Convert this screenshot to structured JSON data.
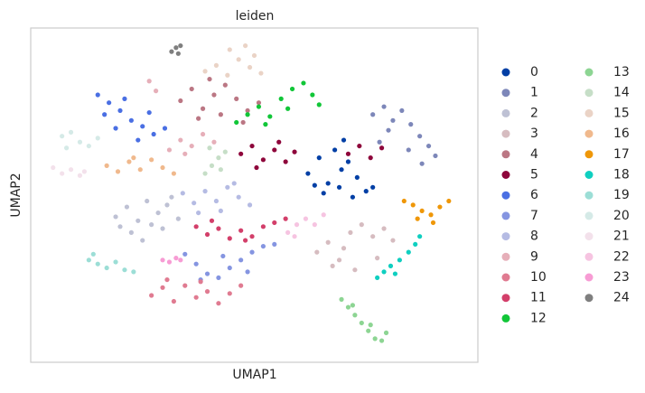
{
  "chart_data": {
    "type": "scatter",
    "title": "leiden",
    "x_label": "UMAP1",
    "y_label": "UMAP2",
    "xlim": [
      0,
      20
    ],
    "ylim": [
      0,
      17
    ],
    "grid": false,
    "legend": "right",
    "series": [
      {
        "name": "0",
        "color": "#023fa5",
        "x": [
          12.4,
          12.9,
          13.3,
          13.6,
          13.9,
          14.2,
          14.6,
          15.0,
          13.1,
          13.8,
          14.4,
          15.3,
          12.7,
          14.0
        ],
        "y": [
          9.6,
          10.4,
          9.1,
          10.8,
          9.8,
          10.2,
          9.4,
          8.7,
          8.6,
          8.9,
          8.4,
          8.9,
          9.0,
          11.3
        ]
      },
      {
        "name": "1",
        "color": "#7d87b9",
        "x": [
          15.3,
          15.8,
          16.2,
          16.6,
          17.0,
          17.4,
          17.8,
          18.1,
          16.0,
          16.9,
          17.5,
          15.6
        ],
        "y": [
          12.6,
          13.0,
          12.3,
          12.8,
          12.1,
          11.5,
          11.0,
          10.5,
          11.8,
          10.8,
          10.1,
          11.2
        ]
      },
      {
        "name": "2",
        "color": "#bec1d4",
        "x": [
          3.8,
          4.3,
          4.8,
          5.2,
          5.7,
          6.1,
          6.6,
          4.5,
          5.0,
          5.9,
          4.0,
          5.4,
          6.3
        ],
        "y": [
          7.4,
          7.9,
          7.2,
          8.2,
          7.6,
          8.0,
          7.3,
          6.6,
          6.2,
          6.8,
          6.9,
          7.0,
          8.4
        ]
      },
      {
        "name": "3",
        "color": "#d6bcc0",
        "x": [
          12.8,
          13.3,
          13.8,
          14.3,
          14.8,
          15.3,
          15.8,
          16.2,
          13.5,
          14.5,
          15.5,
          14.0
        ],
        "y": [
          5.6,
          6.1,
          5.2,
          6.6,
          7.0,
          6.4,
          6.8,
          6.2,
          4.9,
          4.7,
          5.3,
          5.8
        ]
      },
      {
        "name": "4",
        "color": "#bb7784",
        "x": [
          6.7,
          7.2,
          7.7,
          8.2,
          8.7,
          9.2,
          9.7,
          10.2,
          7.5,
          8.5,
          9.5,
          8.0
        ],
        "y": [
          13.3,
          13.9,
          12.9,
          13.6,
          14.1,
          13.4,
          12.8,
          13.2,
          12.4,
          12.6,
          12.2,
          14.4
        ]
      },
      {
        "name": "5",
        "color": "#8e063b",
        "x": [
          9.4,
          9.9,
          10.4,
          10.9,
          11.4,
          11.8,
          14.2,
          14.7,
          15.2,
          15.7,
          10.1,
          11.1
        ],
        "y": [
          10.6,
          11.0,
          10.3,
          10.8,
          10.2,
          10.7,
          10.6,
          11.0,
          10.4,
          10.9,
          9.9,
          11.2
        ]
      },
      {
        "name": "6",
        "color": "#4a6fe3",
        "x": [
          3.0,
          3.5,
          4.0,
          4.5,
          5.0,
          5.5,
          6.0,
          3.3,
          4.2,
          4.8,
          5.3,
          3.8
        ],
        "y": [
          13.6,
          13.2,
          12.8,
          12.3,
          12.0,
          11.6,
          11.9,
          12.6,
          13.4,
          11.3,
          12.7,
          11.9
        ]
      },
      {
        "name": "7",
        "color": "#8595e1",
        "x": [
          6.9,
          7.4,
          7.9,
          8.4,
          8.9,
          9.4,
          9.9,
          10.4,
          10.9,
          7.6,
          8.6,
          9.7
        ],
        "y": [
          5.5,
          5.0,
          4.5,
          4.3,
          4.8,
          5.2,
          5.6,
          5.9,
          6.0,
          4.2,
          5.4,
          4.6
        ]
      },
      {
        "name": "8",
        "color": "#b5bbe3",
        "x": [
          6.8,
          7.3,
          7.8,
          8.3,
          8.8,
          9.3,
          9.8,
          7.5,
          8.5,
          9.1
        ],
        "y": [
          8.6,
          8.1,
          8.7,
          8.2,
          8.9,
          8.4,
          8.0,
          7.6,
          7.7,
          9.1
        ]
      },
      {
        "name": "9",
        "color": "#e6afb9",
        "x": [
          6.2,
          6.7,
          7.2,
          7.7,
          8.2,
          5.3,
          5.6,
          6.9
        ],
        "y": [
          10.8,
          11.3,
          11.0,
          11.6,
          11.2,
          14.3,
          13.8,
          10.6
        ]
      },
      {
        "name": "10",
        "color": "#e07b91",
        "x": [
          5.4,
          5.9,
          6.4,
          6.9,
          7.4,
          7.9,
          8.4,
          8.9,
          9.4,
          6.1,
          7.6
        ],
        "y": [
          3.4,
          3.8,
          3.1,
          3.9,
          3.3,
          3.6,
          3.0,
          3.5,
          3.9,
          4.2,
          4.1
        ]
      },
      {
        "name": "11",
        "color": "#d33f6a",
        "x": [
          7.4,
          7.9,
          8.4,
          8.9,
          9.4,
          9.9,
          10.4,
          10.9,
          11.4,
          8.1,
          9.6
        ],
        "y": [
          6.9,
          6.5,
          6.8,
          6.3,
          6.7,
          6.4,
          6.9,
          7.1,
          7.3,
          7.2,
          6.2
        ]
      },
      {
        "name": "12",
        "color": "#11c638",
        "x": [
          9.2,
          9.7,
          10.2,
          10.7,
          11.2,
          11.7,
          12.2,
          12.6,
          10.5,
          11.5,
          12.9
        ],
        "y": [
          12.2,
          12.6,
          13.0,
          12.5,
          13.4,
          13.9,
          14.2,
          13.6,
          12.1,
          12.9,
          13.1
        ]
      },
      {
        "name": "13",
        "color": "#8dd593",
        "x": [
          13.9,
          14.2,
          14.5,
          14.8,
          15.1,
          15.4,
          15.7,
          15.9,
          14.4,
          15.2
        ],
        "y": [
          3.2,
          2.8,
          2.4,
          2.0,
          1.6,
          1.2,
          1.1,
          1.5,
          2.9,
          1.9
        ]
      },
      {
        "name": "14",
        "color": "#c6dec7",
        "x": [
          7.8,
          8.1,
          8.4,
          8.7,
          8.0,
          8.5
        ],
        "y": [
          9.6,
          10.0,
          10.4,
          10.7,
          10.9,
          9.8
        ]
      },
      {
        "name": "15",
        "color": "#ead3c6",
        "x": [
          7.8,
          8.3,
          8.8,
          9.3,
          9.8,
          10.3,
          8.9,
          9.6,
          10.0
        ],
        "y": [
          14.8,
          15.1,
          14.6,
          15.4,
          15.0,
          14.7,
          15.9,
          16.1,
          15.6
        ]
      },
      {
        "name": "16",
        "color": "#f0b98d",
        "x": [
          3.4,
          3.9,
          4.4,
          4.9,
          5.4,
          5.9,
          6.4,
          4.6
        ],
        "y": [
          10.0,
          9.7,
          10.2,
          9.8,
          10.3,
          9.9,
          9.6,
          10.4
        ]
      },
      {
        "name": "17",
        "color": "#ef9708",
        "x": [
          16.7,
          17.1,
          17.5,
          17.9,
          18.3,
          18.7,
          17.3,
          18.0
        ],
        "y": [
          8.2,
          8.0,
          7.7,
          7.5,
          7.9,
          8.2,
          7.3,
          7.1
        ]
      },
      {
        "name": "18",
        "color": "#0fcfc0",
        "x": [
          15.5,
          15.8,
          16.1,
          16.5,
          16.9,
          17.2,
          17.4,
          16.3
        ],
        "y": [
          4.3,
          4.6,
          4.9,
          5.2,
          5.6,
          6.0,
          6.4,
          4.5
        ]
      },
      {
        "name": "19",
        "color": "#9cded6",
        "x": [
          2.6,
          3.0,
          3.4,
          3.8,
          4.2,
          4.6,
          2.8
        ],
        "y": [
          5.2,
          5.0,
          4.8,
          5.1,
          4.7,
          4.6,
          5.5
        ]
      },
      {
        "name": "20",
        "color": "#d5eae7",
        "x": [
          1.4,
          1.8,
          2.2,
          2.6,
          3.0,
          1.6
        ],
        "y": [
          11.5,
          11.7,
          11.2,
          11.0,
          11.4,
          10.9
        ]
      },
      {
        "name": "21",
        "color": "#f3e1eb",
        "x": [
          1.0,
          1.4,
          1.8,
          2.2,
          2.4
        ],
        "y": [
          9.9,
          9.6,
          9.8,
          9.5,
          9.7
        ]
      },
      {
        "name": "22",
        "color": "#f6c4e1",
        "x": [
          11.5,
          11.9,
          12.3,
          12.7,
          13.1,
          11.8
        ],
        "y": [
          6.6,
          7.0,
          7.3,
          7.0,
          7.5,
          6.4
        ]
      },
      {
        "name": "23",
        "color": "#f79cd4",
        "x": [
          5.9,
          6.2,
          6.5,
          6.7
        ],
        "y": [
          5.2,
          5.1,
          5.3,
          5.2
        ]
      },
      {
        "name": "24",
        "color": "#7f7f7f",
        "x": [
          6.3,
          6.5,
          6.6,
          6.7
        ],
        "y": [
          15.8,
          16.0,
          15.7,
          16.1
        ]
      }
    ]
  }
}
